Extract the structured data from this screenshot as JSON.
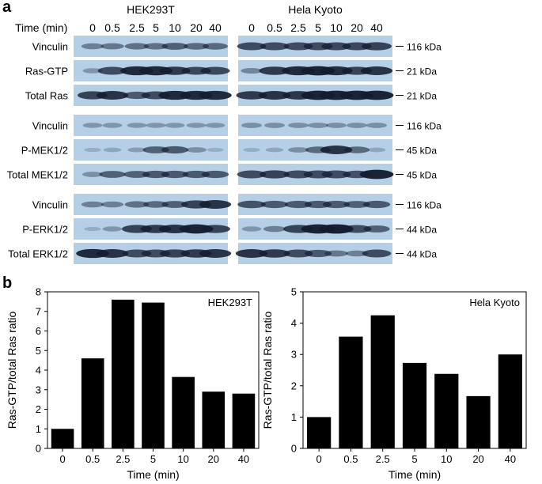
{
  "panel_a": {
    "letter": "a",
    "time_label": "Time (min)",
    "cell_lines": [
      "HEK293T",
      "Hela Kyoto"
    ],
    "timepoints": [
      "0",
      "0.5",
      "2.5",
      "5",
      "10",
      "20",
      "40"
    ],
    "blot_colors": {
      "background": "#b4cfe6",
      "band": "#141c30"
    },
    "groups": [
      {
        "rows": [
          {
            "label": "Vinculin",
            "mw": "116 kDa",
            "intensity": [
              [
                0.35,
                0.4,
                0.45,
                0.45,
                0.55,
                0.5,
                0.5
              ],
              [
                0.7,
                0.7,
                0.7,
                0.7,
                0.72,
                0.72,
                0.75
              ]
            ]
          },
          {
            "label": "Ras-GTP",
            "mw": "21 kDa",
            "intensity": [
              [
                0.2,
                0.7,
                0.9,
                0.92,
                0.8,
                0.72,
                0.72
              ],
              [
                0.3,
                0.8,
                0.9,
                0.95,
                0.88,
                0.75,
                0.85
              ]
            ]
          },
          {
            "label": "Total Ras",
            "mw": "21 kDa",
            "intensity": [
              [
                0.75,
                0.85,
                0.6,
                0.7,
                0.9,
                0.9,
                0.9
              ],
              [
                0.8,
                0.85,
                0.82,
                0.95,
                0.95,
                0.95,
                0.95
              ]
            ]
          }
        ]
      },
      {
        "rows": [
          {
            "label": "Vinculin",
            "mw": "116 kDa",
            "intensity": [
              [
                0.2,
                0.2,
                0.2,
                0.2,
                0.2,
                0.2,
                0.2
              ],
              [
                0.25,
                0.25,
                0.25,
                0.25,
                0.25,
                0.25,
                0.25
              ]
            ]
          },
          {
            "label": "P-MEK1/2",
            "mw": "45 kDa",
            "intensity": [
              [
                0.05,
                0.1,
                0.15,
                0.55,
                0.6,
                0.25,
                0.05
              ],
              [
                0.05,
                0.1,
                0.25,
                0.5,
                0.85,
                0.5,
                0.1
              ]
            ]
          },
          {
            "label": "Total MEK1/2",
            "mw": "45 kDa",
            "intensity": [
              [
                0.25,
                0.55,
                0.55,
                0.6,
                0.6,
                0.6,
                0.6
              ],
              [
                0.7,
                0.75,
                0.7,
                0.7,
                0.7,
                0.65,
                0.95
              ]
            ]
          }
        ]
      },
      {
        "rows": [
          {
            "label": "Vinculin",
            "mw": "116 kDa",
            "intensity": [
              [
                0.35,
                0.35,
                0.45,
                0.5,
                0.55,
                0.75,
                0.85
              ],
              [
                0.65,
                0.6,
                0.6,
                0.6,
                0.6,
                0.55,
                0.6
              ]
            ]
          },
          {
            "label": "P-ERK1/2",
            "mw": "44 kDa",
            "intensity": [
              [
                0.05,
                0.2,
                0.75,
                0.8,
                0.85,
                0.95,
                0.75
              ],
              [
                0.2,
                0.35,
                0.75,
                0.95,
                0.98,
                0.7,
                0.55
              ]
            ]
          },
          {
            "label": "Total ERK1/2",
            "mw": "44 kDa",
            "intensity": [
              [
                0.9,
                0.85,
                0.7,
                0.7,
                0.75,
                0.8,
                0.85
              ],
              [
                0.85,
                0.8,
                0.7,
                0.6,
                0.4,
                0.35,
                0.7
              ]
            ]
          }
        ]
      }
    ]
  },
  "panel_b": {
    "letter": "b"
  },
  "chart_data": [
    {
      "type": "bar",
      "label": "HEK293T",
      "categories": [
        "0",
        "0.5",
        "2.5",
        "5",
        "10",
        "20",
        "40"
      ],
      "values": [
        1.0,
        4.6,
        7.6,
        7.45,
        3.65,
        2.9,
        2.8
      ],
      "xlabel": "Time (min)",
      "ylabel": "Ras-GTP/total Ras ratio",
      "ylim": [
        0,
        8
      ],
      "yticks": [
        "0",
        "1",
        "2",
        "3",
        "4",
        "5",
        "6",
        "7",
        "8"
      ],
      "bar_color": "#000000",
      "grid": false
    },
    {
      "type": "bar",
      "label": "Hela Kyoto",
      "categories": [
        "0",
        "0.5",
        "2.5",
        "5",
        "10",
        "20",
        "40"
      ],
      "values": [
        1.0,
        3.57,
        4.25,
        2.73,
        2.38,
        1.67,
        3.0
      ],
      "xlabel": "Time (min)",
      "ylabel": "Ras-GTP/total Ras ratio",
      "ylim": [
        0,
        5
      ],
      "yticks": [
        "0",
        "1",
        "2",
        "3",
        "4",
        "5"
      ],
      "bar_color": "#000000",
      "grid": false
    }
  ]
}
